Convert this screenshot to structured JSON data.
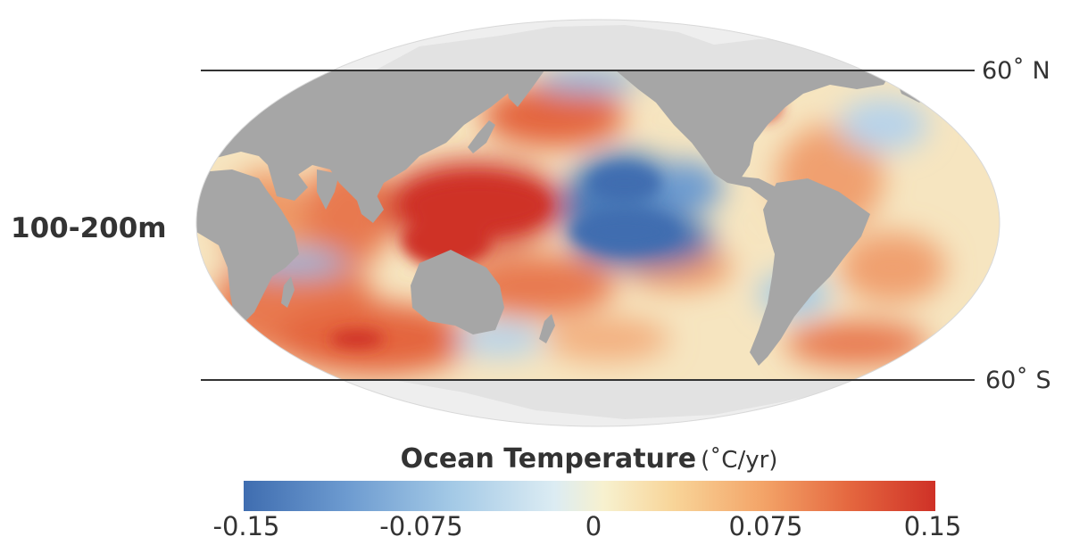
{
  "map": {
    "depth_label": "100-200m",
    "lat_north_label": "60˚ N",
    "lat_south_label": "60˚ S",
    "colors": {
      "land": "#a6a6a6",
      "polar_land": "#e6e6e6",
      "polar_ocean": "#f0f0f0",
      "warm": "#d0352a",
      "cool": "#4170b3",
      "latitude_line": "#333333"
    }
  },
  "legend": {
    "title": "Ocean Temperature",
    "unit": "(˚C/yr)",
    "ticks": [
      "-0.15",
      "-0.075",
      "0",
      "0.075",
      "0.15"
    ],
    "min": -0.15,
    "max": 0.15,
    "colors": [
      "#3f6db0",
      "#a3c9e6",
      "#f7f1cf",
      "#f3a468",
      "#cf3127"
    ]
  }
}
